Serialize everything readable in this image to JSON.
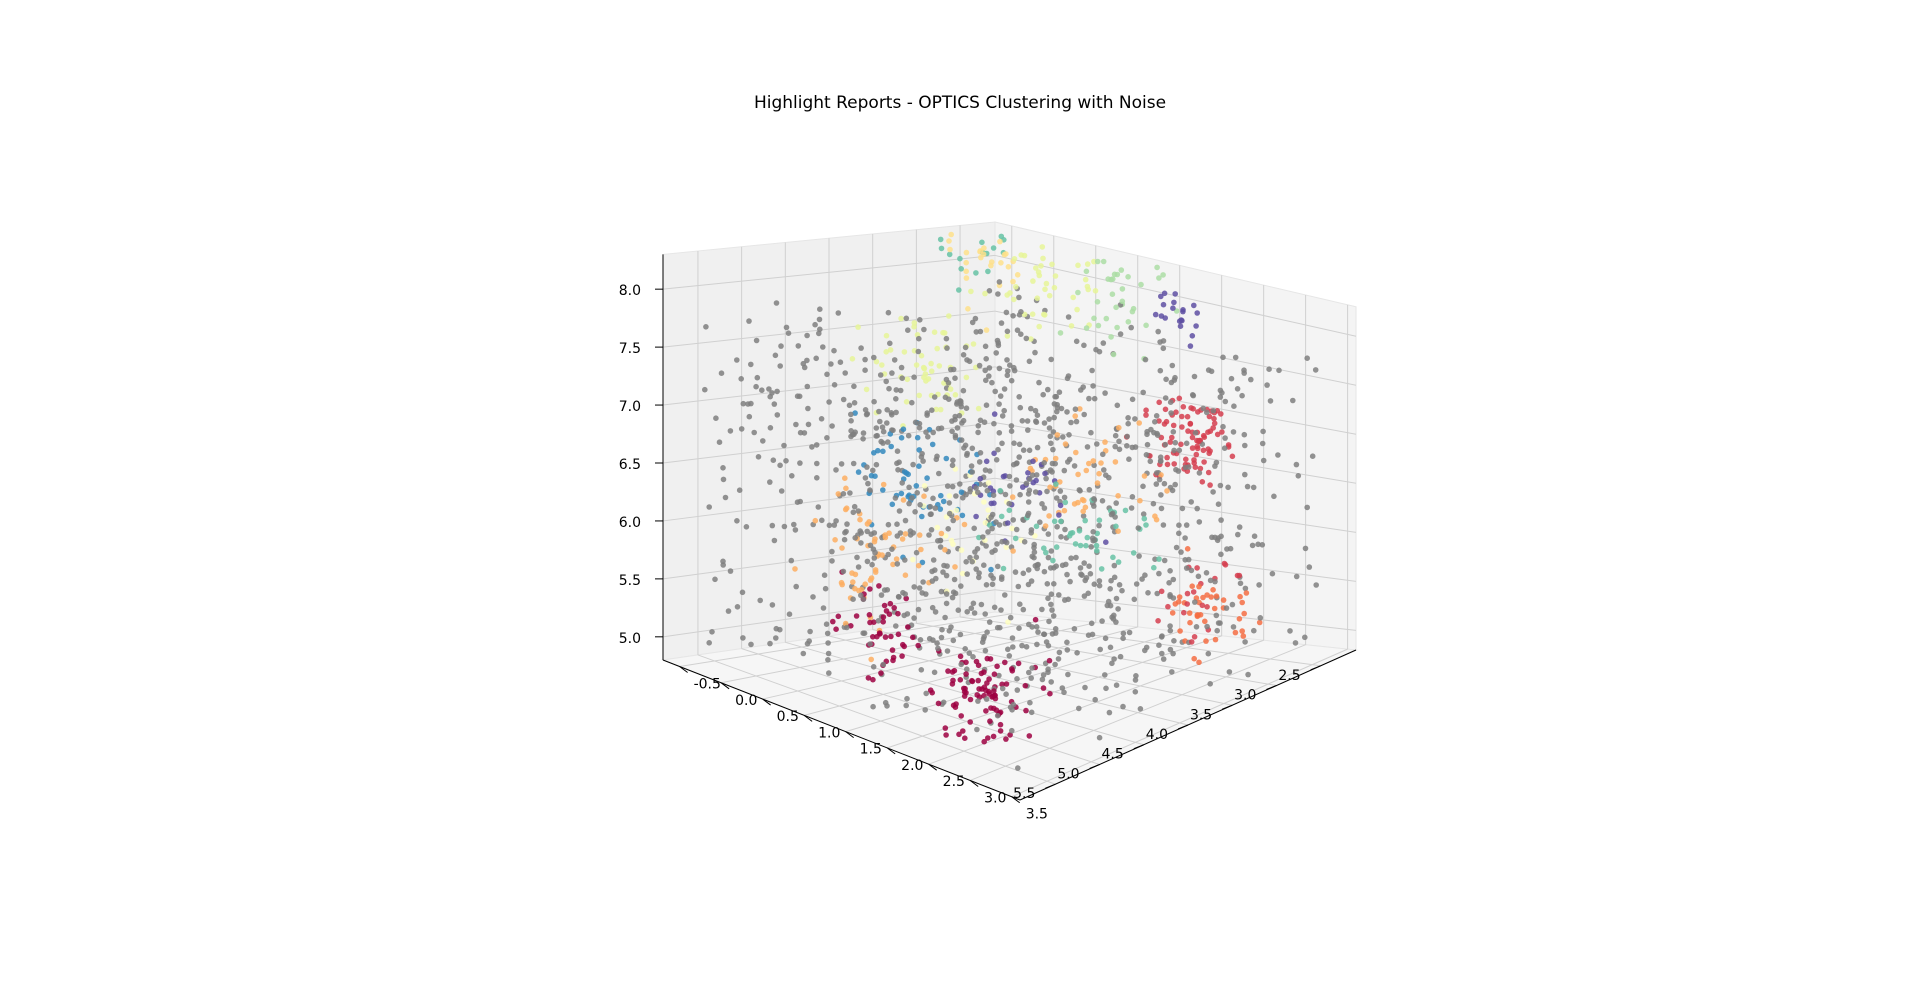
{
  "chart_data": {
    "type": "scatter",
    "projection": "3d",
    "title": "Highlight Reports - OPTICS Clustering with Noise",
    "xlabel": "",
    "ylabel": "",
    "zlabel": "",
    "grid": true,
    "legend": "none",
    "xlim": [
      2.1,
      5.9
    ],
    "ylim": [
      -0.7,
      3.6
    ],
    "zlim": [
      4.8,
      8.3
    ],
    "xticks": [
      "2.5",
      "3.0",
      "3.5",
      "4.0",
      "4.5",
      "5.0",
      "5.5"
    ],
    "yticks": [
      "-0.5",
      "0.0",
      "0.5",
      "1.0",
      "1.5",
      "2.0",
      "2.5",
      "3.0",
      "3.5"
    ],
    "zticks": [
      "5.0",
      "5.5",
      "6.0",
      "6.5",
      "7.0",
      "7.5",
      "8.0"
    ],
    "noise_color": "#7f7f7f",
    "cluster_colors": [
      "#9e0142",
      "#d53e4f",
      "#f46d43",
      "#fdae61",
      "#fee08b",
      "#ffffbf",
      "#e6f598",
      "#abdda4",
      "#66c2a5",
      "#3288bd",
      "#5e4fa2"
    ],
    "noise_count": 1100,
    "clusters": [
      {
        "center": [
          5.2,
          2.4,
          5.2
        ],
        "spread": 0.22,
        "count": 90,
        "color": "#9e0142"
      },
      {
        "center": [
          4.9,
          0.9,
          5.4
        ],
        "spread": 0.18,
        "count": 45,
        "color": "#9e0142"
      },
      {
        "center": [
          2.4,
          1.9,
          6.8
        ],
        "spread": 0.2,
        "count": 85,
        "color": "#d53e4f"
      },
      {
        "center": [
          3.1,
          2.8,
          5.6
        ],
        "spread": 0.18,
        "count": 20,
        "color": "#d53e4f"
      },
      {
        "center": [
          2.8,
          2.6,
          5.4
        ],
        "spread": 0.22,
        "count": 40,
        "color": "#f46d43"
      },
      {
        "center": [
          4.6,
          0.5,
          5.9
        ],
        "spread": 0.28,
        "count": 60,
        "color": "#fdae61"
      },
      {
        "center": [
          3.3,
          1.6,
          6.5
        ],
        "spread": 0.3,
        "count": 45,
        "color": "#fdae61"
      },
      {
        "center": [
          2.6,
          -0.3,
          8.0
        ],
        "spread": 0.25,
        "count": 25,
        "color": "#fee08b"
      },
      {
        "center": [
          3.8,
          0.8,
          6.2
        ],
        "spread": 0.3,
        "count": 30,
        "color": "#ffffbf"
      },
      {
        "center": [
          3.0,
          -0.6,
          7.1
        ],
        "spread": 0.28,
        "count": 55,
        "color": "#e6f598"
      },
      {
        "center": [
          2.5,
          0.4,
          8.0
        ],
        "spread": 0.25,
        "count": 40,
        "color": "#e6f598"
      },
      {
        "center": [
          2.3,
          1.0,
          7.9
        ],
        "spread": 0.22,
        "count": 35,
        "color": "#abdda4"
      },
      {
        "center": [
          3.7,
          1.9,
          6.2
        ],
        "spread": 0.28,
        "count": 45,
        "color": "#66c2a5"
      },
      {
        "center": [
          2.6,
          -0.4,
          8.2
        ],
        "spread": 0.18,
        "count": 15,
        "color": "#66c2a5"
      },
      {
        "center": [
          3.9,
          0.3,
          6.3
        ],
        "spread": 0.3,
        "count": 55,
        "color": "#3288bd"
      },
      {
        "center": [
          2.4,
          1.8,
          8.0
        ],
        "spread": 0.12,
        "count": 20,
        "color": "#5e4fa2"
      },
      {
        "center": [
          3.6,
          1.2,
          6.4
        ],
        "spread": 0.25,
        "count": 30,
        "color": "#5e4fa2"
      }
    ]
  }
}
